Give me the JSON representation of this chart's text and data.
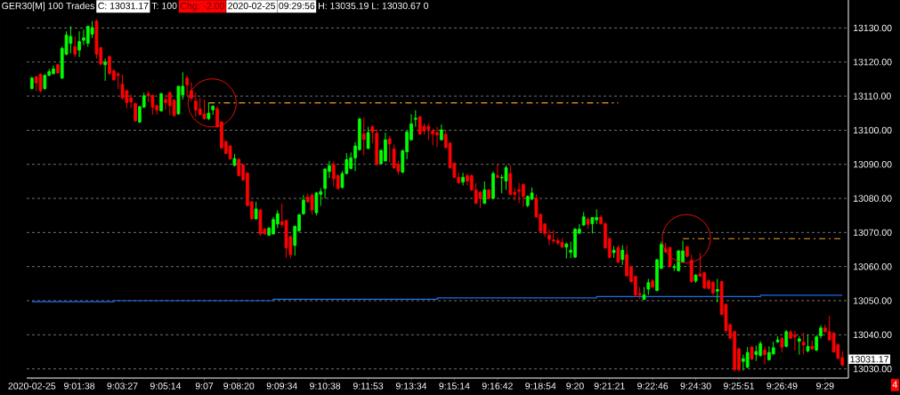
{
  "chart_data": {
    "type": "candlestick",
    "title": "GER30[M]  100 Trades",
    "annotations": [
      "C: 13031.17",
      "T: 100",
      "Chg: -2.00",
      "2020-02-25",
      "09:29:56",
      "H: 13035.19 L: 13030.67 0",
      "13031.17",
      "4"
    ],
    "categories": [
      "2020-02-25",
      null,
      null,
      null,
      null,
      null,
      null,
      null,
      null,
      null,
      null,
      "9:01:38",
      null,
      null,
      null,
      null,
      null,
      null,
      null,
      null,
      null,
      "9:03:27",
      null,
      null,
      null,
      null,
      null,
      null,
      null,
      null,
      null,
      "9:05:14",
      null,
      null,
      null,
      null,
      null,
      null,
      null,
      null,
      "9:07",
      null,
      null,
      null,
      null,
      null,
      null,
      null,
      "9:08:20",
      null,
      null,
      null,
      null,
      null,
      null,
      null,
      null,
      null,
      "9:09:34",
      null,
      null,
      null,
      null,
      null,
      null,
      null,
      null,
      null,
      "9:10:38",
      null,
      null,
      null,
      null,
      null,
      null,
      null,
      null,
      null,
      "9:11:53",
      null,
      null,
      null,
      null,
      null,
      null,
      null,
      null,
      null,
      "9:13:34",
      null,
      null,
      null,
      null,
      null,
      null,
      null,
      null,
      null,
      "9:15:14",
      null,
      null,
      null,
      null,
      null,
      null,
      null,
      null,
      null,
      "9:16:42",
      null,
      null,
      null,
      null,
      null,
      null,
      null,
      null,
      null,
      "9:18:54",
      null,
      null,
      null,
      null,
      null,
      null,
      null,
      "9:20",
      null,
      null,
      null,
      null,
      null,
      null,
      null,
      "9:21:21",
      null,
      null,
      null,
      null,
      null,
      null,
      null,
      null,
      null,
      "9:22:46",
      null,
      null,
      null,
      null,
      null,
      null,
      null,
      null,
      null,
      "9:24:30",
      null,
      null,
      null,
      null,
      null,
      null,
      null,
      null,
      null,
      "9:25:51",
      null,
      null,
      null,
      null,
      null,
      null,
      null,
      null,
      null,
      "9:26:49",
      null,
      null,
      null,
      null,
      null,
      null,
      null,
      null,
      null,
      "9:29",
      null,
      null,
      null,
      null
    ],
    "ohlc": [
      [
        13112.2,
        13115.7,
        13112,
        13115.3
      ],
      [
        13115.7,
        13116,
        13111.5,
        13113.9
      ],
      [
        13116.4,
        13116.7,
        13111.1,
        13111.6
      ],
      [
        13112.2,
        13116.4,
        13111.9,
        13116.1
      ],
      [
        13116.1,
        13118,
        13115.8,
        13117.2
      ],
      [
        13116.6,
        13119,
        13116.3,
        13118
      ],
      [
        13119.2,
        13119.5,
        13116.5,
        13116.8
      ],
      [
        13115.3,
        13124.6,
        13115,
        13124
      ],
      [
        13122.3,
        13129,
        13122,
        13127.9
      ],
      [
        13125.5,
        13130.5,
        13122.6,
        13127.5
      ],
      [
        13124.5,
        13127.5,
        13121.5,
        13122.3
      ],
      [
        13123.5,
        13129,
        13121.5,
        13126
      ],
      [
        13126.4,
        13129.5,
        13125,
        13127.1
      ],
      [
        13125.5,
        13130.5,
        13124.5,
        13130.5
      ],
      [
        13128.2,
        13132,
        13127,
        13130.1
      ],
      [
        13132,
        13132.5,
        13121,
        13122.3
      ],
      [
        13124.2,
        13124.5,
        13119,
        13119.4
      ],
      [
        13119.2,
        13121,
        13114.5,
        13120
      ],
      [
        13121.6,
        13121.9,
        13116.3,
        13116.6
      ],
      [
        13117.4,
        13118,
        13114.5,
        13114.8
      ],
      [
        13116.5,
        13117,
        13112,
        13116.1
      ],
      [
        13113.5,
        13116.3,
        13109,
        13109.5
      ],
      [
        13111.6,
        13111.9,
        13106.4,
        13108.1
      ],
      [
        13109.5,
        13110.5,
        13106.5,
        13108.3
      ],
      [
        13107.8,
        13108.1,
        13102.4,
        13102.8
      ],
      [
        13102.4,
        13107.2,
        13102.1,
        13106.9
      ],
      [
        13106.8,
        13111,
        13106.5,
        13110.1
      ],
      [
        13110.7,
        13111.5,
        13108.2,
        13110.2
      ],
      [
        13110.2,
        13110.5,
        13104.6,
        13106.8
      ],
      [
        13107.2,
        13107.5,
        13104.6,
        13105.9
      ],
      [
        13105.7,
        13111,
        13105.4,
        13110.7
      ],
      [
        13109,
        13110.5,
        13106,
        13108.1
      ],
      [
        13111,
        13111.3,
        13104.4,
        13107.2
      ],
      [
        13108.8,
        13109.1,
        13104,
        13104.3
      ],
      [
        13104.8,
        13113,
        13104.5,
        13112.9
      ],
      [
        13110.4,
        13117,
        13109,
        13112.9
      ],
      [
        13115.3,
        13116,
        13110,
        13113.3
      ],
      [
        13111.6,
        13114,
        13108.5,
        13109.4
      ],
      [
        13108.5,
        13111,
        13104,
        13105.9
      ],
      [
        13106.2,
        13109.5,
        13104.3,
        13104.6
      ],
      [
        13104.8,
        13109,
        13103.1,
        13103.4
      ],
      [
        13103.4,
        13108.2,
        13103,
        13105
      ],
      [
        13106,
        13107.4,
        13104.5,
        13107
      ],
      [
        13106.3,
        13107,
        13100.7,
        13101
      ],
      [
        13102.4,
        13102.7,
        13094.5,
        13094.8
      ],
      [
        13096.7,
        13097,
        13092.9,
        13093.2
      ],
      [
        13095.4,
        13095.7,
        13091.3,
        13091.6
      ],
      [
        13089.7,
        13093,
        13089.4,
        13091.7
      ],
      [
        13091.5,
        13091.8,
        13086.4,
        13086.7
      ],
      [
        13089.8,
        13090.1,
        13085.1,
        13085.4
      ],
      [
        13087.4,
        13087.7,
        13077.6,
        13077.9
      ],
      [
        13079,
        13079.3,
        13073.7,
        13074
      ],
      [
        13074,
        13079,
        13073.7,
        13076.9
      ],
      [
        13076.6,
        13076.9,
        13069,
        13069.6
      ],
      [
        13071,
        13071.3,
        13069.3,
        13069.6
      ],
      [
        13069.2,
        13071.6,
        13069,
        13071.3
      ],
      [
        13069.6,
        13074.6,
        13069.3,
        13073.8
      ],
      [
        13072.5,
        13076.5,
        13071.3,
        13075.5
      ],
      [
        13073.2,
        13078.5,
        13071.5,
        13072.3
      ],
      [
        13073.5,
        13073.8,
        13062.6,
        13065.5
      ],
      [
        13068.8,
        13069.1,
        13062.4,
        13063.5
      ],
      [
        13066.2,
        13072.1,
        13063.2,
        13071.8
      ],
      [
        13070.5,
        13075.5,
        13070.2,
        13075.2
      ],
      [
        13075.5,
        13081,
        13075.2,
        13079.5
      ],
      [
        13080.4,
        13081.4,
        13078.7,
        13079
      ],
      [
        13080.9,
        13081.5,
        13075.3,
        13076.6
      ],
      [
        13075.8,
        13081.9,
        13075,
        13081.6
      ],
      [
        13081.2,
        13083,
        13077.8,
        13082
      ],
      [
        13082.9,
        13088.9,
        13080,
        13088.6
      ],
      [
        13087.9,
        13091,
        13086,
        13089.6
      ],
      [
        13090,
        13090.8,
        13083.5,
        13085.8
      ],
      [
        13086.7,
        13087,
        13082.5,
        13082.9
      ],
      [
        13083.2,
        13088,
        13082.9,
        13087.3
      ],
      [
        13087.3,
        13093.3,
        13087,
        13091.4
      ],
      [
        13088.8,
        13093.5,
        13088.5,
        13091.9
      ],
      [
        13091.9,
        13096.5,
        13088,
        13095.4
      ],
      [
        13094.3,
        13103.6,
        13094,
        13103.3
      ],
      [
        13098.9,
        13103.7,
        13092.7,
        13097.3
      ],
      [
        13094.7,
        13101,
        13094.4,
        13099.3
      ],
      [
        13101,
        13101.5,
        13096.2,
        13099.5
      ],
      [
        13099.1,
        13100.3,
        13089.8,
        13089.9
      ],
      [
        13090.2,
        13094.4,
        13089.9,
        13094.1
      ],
      [
        13091,
        13099.3,
        13090.7,
        13097.2
      ],
      [
        13097.5,
        13098.3,
        13090.5,
        13096
      ],
      [
        13094.5,
        13095.8,
        13088.7,
        13089
      ],
      [
        13090,
        13091,
        13087,
        13087.9
      ],
      [
        13087.7,
        13094.3,
        13087.4,
        13094
      ],
      [
        13093.7,
        13099.8,
        13091.5,
        13099.5
      ],
      [
        13097.2,
        13104.7,
        13096.9,
        13101.9
      ],
      [
        13103.2,
        13105.9,
        13101,
        13103.5
      ],
      [
        13103.9,
        13104.3,
        13098.6,
        13098.9
      ],
      [
        13101.1,
        13102,
        13098.7,
        13099.8
      ],
      [
        13101.1,
        13102,
        13097.2,
        13100.3
      ],
      [
        13099.8,
        13100.5,
        13095.6,
        13098.9
      ],
      [
        13099.3,
        13101,
        13095,
        13098.6
      ],
      [
        13097.2,
        13101.7,
        13096.9,
        13100.1
      ],
      [
        13098.8,
        13100,
        13094.6,
        13094.9
      ],
      [
        13096.2,
        13096.5,
        13088.7,
        13089
      ],
      [
        13090.3,
        13090.6,
        13085.9,
        13086.2
      ],
      [
        13086.2,
        13087.5,
        13084.3,
        13084.6
      ],
      [
        13084.8,
        13087.5,
        13083.8,
        13086.2
      ],
      [
        13086.7,
        13087.3,
        13083.8,
        13085.1
      ],
      [
        13086.7,
        13087,
        13082.2,
        13082.5
      ],
      [
        13082.5,
        13084.5,
        13078.3,
        13078.6
      ],
      [
        13081.8,
        13082.2,
        13077.2,
        13080
      ],
      [
        13078.6,
        13085,
        13078.3,
        13082.5
      ],
      [
        13082.5,
        13082.8,
        13079.7,
        13080
      ],
      [
        13080,
        13087.9,
        13079.7,
        13087.3
      ],
      [
        13086.7,
        13090.2,
        13085.9,
        13086.2
      ],
      [
        13086,
        13087,
        13081.5,
        13086.2
      ],
      [
        13085.1,
        13089.7,
        13082.5,
        13089
      ],
      [
        13087.3,
        13089.7,
        13080.9,
        13081.2
      ],
      [
        13081.8,
        13083.1,
        13079.3,
        13081.2
      ],
      [
        13082.5,
        13084.5,
        13078.6,
        13082.1
      ],
      [
        13084.1,
        13084.4,
        13077.6,
        13080.6
      ],
      [
        13077.9,
        13080.9,
        13077.4,
        13080.6
      ],
      [
        13079.8,
        13083.2,
        13079.5,
        13081.6
      ],
      [
        13080,
        13081.2,
        13074.3,
        13074.6
      ],
      [
        13075.3,
        13075.6,
        13070,
        13070.3
      ],
      [
        13072.5,
        13072.8,
        13068.7,
        13069.7
      ],
      [
        13069.2,
        13071,
        13066.3,
        13068
      ],
      [
        13067.8,
        13070.7,
        13066.8,
        13067.5
      ],
      [
        13067.6,
        13068.5,
        13066.3,
        13066.9
      ],
      [
        13067.1,
        13068.3,
        13065.5,
        13065.7
      ],
      [
        13065.7,
        13067,
        13062.4,
        13066.6
      ],
      [
        13064.2,
        13067.3,
        13062.5,
        13064.8
      ],
      [
        13062.8,
        13071.3,
        13062.5,
        13071
      ],
      [
        13069.8,
        13072.5,
        13069.5,
        13071
      ],
      [
        13072.2,
        13076,
        13071.9,
        13074.6
      ],
      [
        13073.9,
        13074.5,
        13071,
        13072.4
      ],
      [
        13072.6,
        13074.5,
        13069.7,
        13074.4
      ],
      [
        13073.7,
        13076.8,
        13072.5,
        13074.4
      ],
      [
        13074.5,
        13075,
        13072.3,
        13072.6
      ],
      [
        13072.6,
        13072.9,
        13065.2,
        13065.5
      ],
      [
        13068.2,
        13068.5,
        13062.4,
        13062.7
      ],
      [
        13064.1,
        13066,
        13062.6,
        13064.8
      ],
      [
        13065.6,
        13066.3,
        13061,
        13061.3
      ],
      [
        13062.1,
        13066.3,
        13060.5,
        13064.8
      ],
      [
        13063.5,
        13066.2,
        13057,
        13057.3
      ],
      [
        13060,
        13060.3,
        13055.3,
        13055.6
      ],
      [
        13057.1,
        13057.4,
        13051.1,
        13051.7
      ],
      [
        13052.1,
        13054,
        13050.5,
        13051.7
      ],
      [
        13050.4,
        13054,
        13050.3,
        13051.7
      ],
      [
        13053.4,
        13056.4,
        13051.7,
        13055.3
      ],
      [
        13055.8,
        13056.3,
        13053.7,
        13054
      ],
      [
        13053,
        13062.3,
        13052.7,
        13062
      ],
      [
        13059.5,
        13067.3,
        13059.2,
        13066.5
      ],
      [
        13065.2,
        13067,
        13064,
        13064.3
      ],
      [
        13065.6,
        13065.9,
        13059.7,
        13060
      ],
      [
        13059.7,
        13060.8,
        13058.7,
        13060
      ],
      [
        13058.8,
        13064.9,
        13058.5,
        13064.6
      ],
      [
        13061.4,
        13067.6,
        13061.1,
        13064.6
      ],
      [
        13065.8,
        13066.1,
        13062.7,
        13063
      ],
      [
        13061.9,
        13063.5,
        13055.3,
        13055.6
      ],
      [
        13055.8,
        13057.8,
        13055.2,
        13057.5
      ],
      [
        13057.8,
        13064,
        13057.2,
        13057.2
      ],
      [
        13058.2,
        13058.5,
        13053.4,
        13053.7
      ],
      [
        13055.8,
        13056.4,
        13053.3,
        13053.6
      ],
      [
        13055.4,
        13055.8,
        13051.6,
        13052.3
      ],
      [
        13052.8,
        13056.4,
        13049.5,
        13053.3
      ],
      [
        13055.6,
        13055.9,
        13045.7,
        13046
      ],
      [
        13048.9,
        13049.2,
        13040.5,
        13041.2
      ],
      [
        13042.9,
        13043.4,
        13038.7,
        13039
      ],
      [
        13040.9,
        13041.3,
        13029.2,
        13029.8
      ],
      [
        13035.9,
        13036.2,
        13029.2,
        13029.8
      ],
      [
        13032.2,
        13034.2,
        13029.5,
        13033
      ],
      [
        13030.5,
        13036.4,
        13030.2,
        13034.8
      ],
      [
        13036.4,
        13036.6,
        13032.6,
        13032.9
      ],
      [
        13034.2,
        13036.8,
        13032.3,
        13035.1
      ],
      [
        13033.9,
        13038.1,
        13033.6,
        13037.4
      ],
      [
        13035.5,
        13036.6,
        13031.3,
        13034.2
      ],
      [
        13032.7,
        13036.6,
        13032.4,
        13034.8
      ],
      [
        13034.4,
        13038,
        13034.1,
        13036.2
      ],
      [
        13037.9,
        13039.6,
        13037.6,
        13038.5
      ],
      [
        13039,
        13039.3,
        13034.8,
        13036.4
      ],
      [
        13036.6,
        13041.4,
        13036.3,
        13040.9
      ],
      [
        13040.8,
        13041.4,
        13038.7,
        13039
      ],
      [
        13039.9,
        13041.1,
        13035.4,
        13039.4
      ],
      [
        13038.1,
        13039.6,
        13034.2,
        13038.8
      ],
      [
        13037.8,
        13040.6,
        13034.3,
        13037
      ],
      [
        13035.3,
        13040,
        13034.8,
        13036.6
      ],
      [
        13036.6,
        13038.3,
        13035.5,
        13035.9
      ],
      [
        13035.5,
        13039.9,
        13035.2,
        13039.4
      ],
      [
        13039.7,
        13042.8,
        13038.9,
        13042
      ],
      [
        13042,
        13043,
        13040.6,
        13040.9
      ],
      [
        13040.9,
        13045.6,
        13038.2,
        13038.5
      ],
      [
        13040.5,
        13040.8,
        13034.7,
        13035
      ],
      [
        13037.1,
        13037.4,
        13032.8,
        13033.1
      ],
      [
        13033.3,
        13035.19,
        13030.67,
        13031.17
      ]
    ],
    "series": [
      {
        "type": "step",
        "color": "#1e6fe6",
        "values": [
          13049.7,
          13049.7,
          13049.7,
          13049.7,
          13049.7,
          13049.7,
          13049.7,
          13049.7,
          13049.7,
          13049.7,
          13049.7,
          13049.7,
          13049.7,
          13049.7,
          13049.7,
          13049.7,
          13049.7,
          13049.7,
          13049.7,
          13050,
          13050,
          13050,
          13050,
          13050,
          13050,
          13050,
          13050,
          13050,
          13050,
          13050,
          13050,
          13050,
          13050,
          13050,
          13050,
          13050,
          13050,
          13050,
          13050,
          13050,
          13050,
          13050,
          13050,
          13050,
          13050,
          13050,
          13050,
          13050,
          13050,
          13050,
          13050,
          13050,
          13050,
          13050,
          13050,
          13050,
          13050.4,
          13050.4,
          13050.4,
          13050.4,
          13050.4,
          13050.4,
          13050.4,
          13050.4,
          13050.4,
          13050.4,
          13050.4,
          13050.4,
          13050.4,
          13050.4,
          13050.4,
          13050.4,
          13050.4,
          13050.4,
          13050.4,
          13050.4,
          13050.4,
          13050.4,
          13050.4,
          13050.4,
          13050.4,
          13050.4,
          13050.4,
          13050.4,
          13050.4,
          13050.4,
          13050.4,
          13050.4,
          13050.4,
          13050.4,
          13050.4,
          13050.4,
          13050.4,
          13050.4,
          13050.8,
          13050.8,
          13050.8,
          13050.8,
          13050.8,
          13050.8,
          13050.8,
          13050.8,
          13050.8,
          13050.8,
          13050.8,
          13050.8,
          13050.8,
          13050.8,
          13050.8,
          13050.8,
          13050.8,
          13050.8,
          13050.8,
          13050.8,
          13050.8,
          13050.8,
          13050.8,
          13050.8,
          13050.8,
          13050.8,
          13050.8,
          13050.8,
          13050.8,
          13050.8,
          13050.8,
          13050.8,
          13050.8,
          13050.8,
          13050.8,
          13050.8,
          13050.8,
          13051.2,
          13051.2,
          13051.2,
          13051.2,
          13051.2,
          13051.2,
          13051.2,
          13051.2,
          13051.2,
          13051.2,
          13051.2,
          13051.2,
          13051.2,
          13051.2,
          13051.2,
          13051.2,
          13051.2,
          13051.2,
          13051.2,
          13051.2,
          13051.2,
          13051.2,
          13051.2,
          13051.2,
          13051.2,
          13051.2,
          13051.2,
          13051.2,
          13051.2,
          13051.2,
          13051.2,
          13051.2,
          13051.2,
          13051.2,
          13051.2,
          13051.2,
          13051.2,
          13051.2,
          13051.6,
          13051.6,
          13051.6,
          13051.6,
          13051.6,
          13051.6,
          13051.6,
          13051.6,
          13051.6,
          13051.6,
          13051.6,
          13051.6,
          13051.6,
          13051.6,
          13051.6,
          13051.6,
          13051.6,
          13051.6,
          13051.6,
          13051.6
        ]
      },
      {
        "type": "line",
        "color": "#f0a030",
        "line_style": "dashed",
        "values": [
          null,
          null,
          null,
          null,
          null,
          null,
          null,
          null,
          null,
          null,
          null,
          null,
          null,
          null,
          null,
          null,
          null,
          null,
          null,
          null,
          null,
          null,
          null,
          null,
          null,
          null,
          null,
          null,
          null,
          null,
          null,
          null,
          null,
          null,
          null,
          null,
          null,
          null,
          null,
          null,
          null,
          13108,
          13108,
          13108,
          13108,
          13108,
          13108,
          13108,
          13108,
          13108,
          13108,
          13108,
          13108,
          13108,
          13108,
          13108,
          13108,
          13108,
          13108,
          13108,
          13108,
          13108,
          13108,
          13108,
          13108,
          13108,
          13108,
          13108,
          13108,
          13108,
          13108,
          13108,
          13108,
          13108,
          13108,
          13108,
          13108,
          13108,
          13108,
          13108,
          13108,
          13108,
          13108,
          13108,
          13108,
          13108,
          13108,
          13108,
          13108,
          13108,
          13108,
          13108,
          13108,
          13108,
          13108,
          13108,
          13108,
          13108,
          13108,
          13108,
          13108,
          13108,
          13108,
          13108,
          13108,
          13108,
          13108,
          13108,
          13108,
          13108,
          13108,
          13108,
          13108,
          13108,
          13108,
          13108,
          13108,
          13108,
          13108,
          13108,
          13108,
          13108,
          13108,
          13108,
          13108,
          13108,
          13108,
          13108,
          13108,
          13108,
          13108,
          13108,
          13108,
          13108,
          13108,
          13108,
          13108,
          null,
          null,
          null,
          null,
          null,
          null,
          null,
          null,
          null,
          null,
          null,
          null,
          null,
          null,
          null,
          null,
          null,
          null,
          null,
          null,
          null,
          null,
          null,
          null,
          null,
          null,
          null,
          null,
          null,
          null,
          null,
          null,
          null,
          null,
          null,
          null,
          null,
          null,
          null,
          null,
          null,
          null,
          null,
          null,
          null,
          null,
          null,
          null,
          null,
          null,
          null,
          null
        ]
      },
      {
        "type": "line",
        "color": "#f0a030",
        "line_style": "dashed",
        "values": [
          null,
          null,
          null,
          null,
          null,
          null,
          null,
          null,
          null,
          null,
          null,
          null,
          null,
          null,
          null,
          null,
          null,
          null,
          null,
          null,
          null,
          null,
          null,
          null,
          null,
          null,
          null,
          null,
          null,
          null,
          null,
          null,
          null,
          null,
          null,
          null,
          null,
          null,
          null,
          null,
          null,
          null,
          null,
          null,
          null,
          null,
          null,
          null,
          null,
          null,
          null,
          null,
          null,
          null,
          null,
          null,
          null,
          null,
          null,
          null,
          null,
          null,
          null,
          null,
          null,
          null,
          null,
          null,
          null,
          null,
          null,
          null,
          null,
          null,
          null,
          null,
          null,
          null,
          null,
          null,
          null,
          null,
          null,
          null,
          null,
          null,
          null,
          null,
          null,
          null,
          null,
          null,
          null,
          null,
          null,
          null,
          null,
          null,
          null,
          null,
          null,
          null,
          null,
          null,
          null,
          null,
          null,
          null,
          null,
          null,
          null,
          null,
          null,
          null,
          null,
          null,
          null,
          null,
          null,
          null,
          null,
          null,
          null,
          null,
          null,
          null,
          null,
          null,
          null,
          null,
          null,
          null,
          null,
          null,
          null,
          null,
          null,
          null,
          null,
          null,
          null,
          null,
          null,
          null,
          null,
          null,
          null,
          null,
          null,
          null,
          null,
          13068.2,
          13068.2,
          13068.2,
          13068.2,
          13068.2,
          13068.2,
          13068.2,
          13068.2,
          13068.2,
          13068.2,
          13068.2,
          13068.2,
          13068.2,
          13068.2,
          13068.2,
          13068.2,
          13068.2,
          13068.2,
          13068.2,
          13068.2,
          13068.2,
          13068.2,
          13068.2,
          13068.2,
          13068.2,
          13068.2,
          13068.2,
          13068.2,
          13068.2,
          13068.2,
          13068.2,
          13068.2,
          13068.2,
          13068.2,
          13068.2,
          13068.2,
          13068.2,
          13068.2
        ]
      }
    ],
    "ylim": [
      13027.3,
      13138.2
    ],
    "yticks": [
      {
        "value": 13030,
        "label": "13030.00"
      },
      {
        "value": 13040,
        "label": "13040.00"
      },
      {
        "value": 13050,
        "label": "13050.00"
      },
      {
        "value": 13060,
        "label": "13060.00"
      },
      {
        "value": 13070,
        "label": "13070.00"
      },
      {
        "value": 13080,
        "label": "13080.00"
      },
      {
        "value": 13090,
        "label": "13090.00"
      },
      {
        "value": 13100,
        "label": "13100.00"
      },
      {
        "value": 13110,
        "label": "13110.00"
      },
      {
        "value": 13120,
        "label": "13120.00"
      },
      {
        "value": 13130,
        "label": "13130.00"
      }
    ],
    "grid": "y"
  }
}
